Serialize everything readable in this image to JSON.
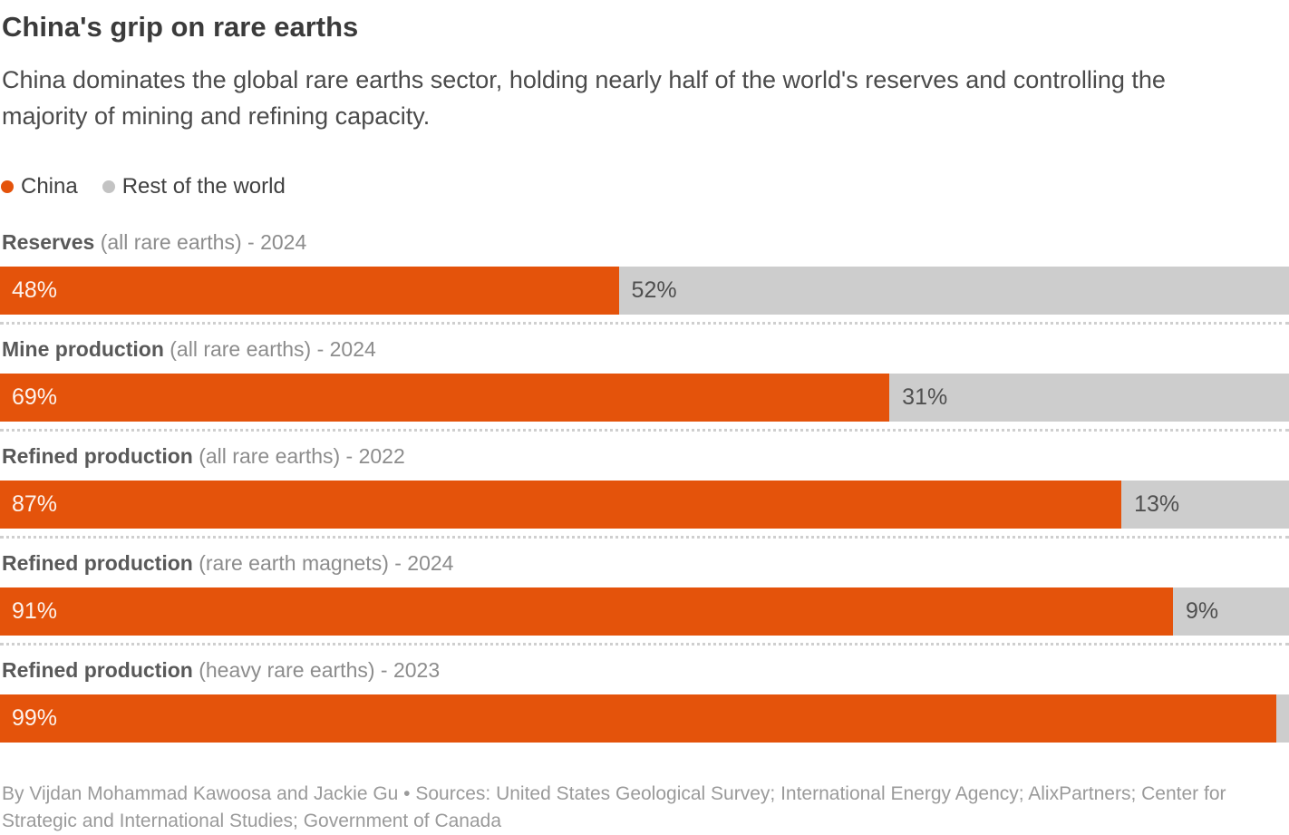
{
  "title": "China's grip on rare earths",
  "subtitle": "China dominates the global rare earths sector, holding nearly half of the world's reserves and controlling the majority of mining and refining capacity.",
  "colors": {
    "china": "#e4530b",
    "rest": "#cdcdcd",
    "legend_rest_dot": "#c3c3c3"
  },
  "legend": {
    "items": [
      {
        "label": "China",
        "color": "#e4530b"
      },
      {
        "label": "Rest of the world",
        "color": "#c3c3c3"
      }
    ]
  },
  "chart_data": {
    "type": "bar",
    "orientation": "horizontal-stacked",
    "unit": "%",
    "xlim": [
      0,
      100
    ],
    "grid": false,
    "legend_position": "top-left",
    "categories": [
      "Reserves (all rare earths) - 2024",
      "Mine production (all rare earths) - 2024",
      "Refined production (all rare earths) - 2022",
      "Refined production (rare earth magnets) - 2024",
      "Refined production (heavy rare earths) - 2023"
    ],
    "series": [
      {
        "name": "China",
        "color": "#e4530b",
        "values": [
          48,
          69,
          87,
          91,
          99
        ]
      },
      {
        "name": "Rest of the world",
        "color": "#cdcdcd",
        "values": [
          52,
          31,
          13,
          9,
          1
        ]
      }
    ],
    "rows": [
      {
        "label_bold": "Reserves",
        "label_rest": " (all rare earths) - 2024",
        "china_pct": 48,
        "china_label": "48%",
        "rest_pct": 52,
        "rest_label": "52%"
      },
      {
        "label_bold": "Mine production",
        "label_rest": " (all rare earths) - 2024",
        "china_pct": 69,
        "china_label": "69%",
        "rest_pct": 31,
        "rest_label": "31%"
      },
      {
        "label_bold": "Refined production",
        "label_rest": " (all rare earths) - 2022",
        "china_pct": 87,
        "china_label": "87%",
        "rest_pct": 13,
        "rest_label": "13%"
      },
      {
        "label_bold": "Refined production",
        "label_rest": " (rare earth magnets) - 2024",
        "china_pct": 91,
        "china_label": "91%",
        "rest_pct": 9,
        "rest_label": "9%"
      },
      {
        "label_bold": "Refined production",
        "label_rest": " (heavy rare earths) - 2023",
        "china_pct": 99,
        "china_label": "99%",
        "rest_pct": 1,
        "rest_label": ""
      }
    ]
  },
  "footer": "By Vijdan Mohammad Kawoosa and Jackie Gu • Sources: United States Geological Survey; International Energy Agency; AlixPartners; Center for Strategic and International Studies; Government of Canada"
}
